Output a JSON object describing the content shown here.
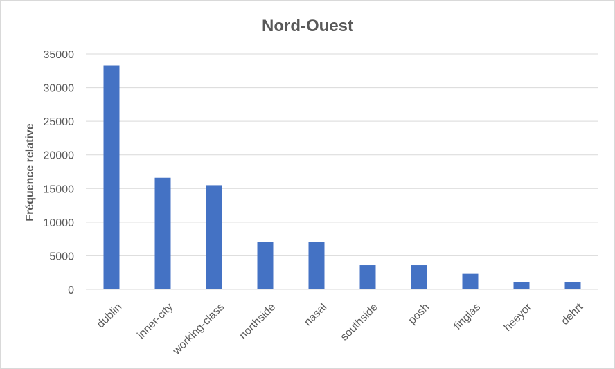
{
  "chart_data": {
    "type": "bar",
    "title": "Nord-Ouest",
    "xlabel": "",
    "ylabel": "Fréquence relative",
    "categories": [
      "dublin",
      "inner-city",
      "working-class",
      "northside",
      "nasal",
      "southside",
      "posh",
      "finglas",
      "heeyor",
      "dehrt"
    ],
    "values": [
      33300,
      16600,
      15500,
      7100,
      7100,
      3600,
      3600,
      2300,
      1100,
      1100
    ],
    "ylim": [
      0,
      35000
    ],
    "yticks": [
      0,
      5000,
      10000,
      15000,
      20000,
      25000,
      30000,
      35000
    ],
    "grid": true,
    "legend": "none",
    "bar_color": "#4472c4"
  }
}
